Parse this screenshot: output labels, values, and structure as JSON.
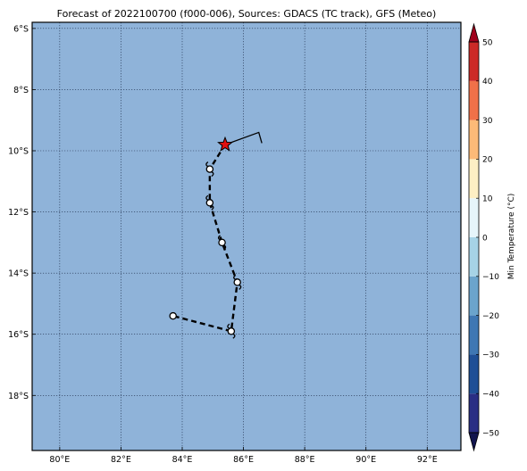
{
  "title": "Forecast of 2022100700 (f000-006), Sources: GDACS (TC track), GFS (Meteo)",
  "map": {
    "ocean_color": "#8fb3d9",
    "lon_range": [
      79.1,
      93.1
    ],
    "lat_range": [
      -19.8,
      -5.8
    ],
    "lon_ticks": [
      {
        "value": 80,
        "label": "80°E"
      },
      {
        "value": 82,
        "label": "82°E"
      },
      {
        "value": 84,
        "label": "84°E"
      },
      {
        "value": 86,
        "label": "86°E"
      },
      {
        "value": 88,
        "label": "88°E"
      },
      {
        "value": 90,
        "label": "90°E"
      },
      {
        "value": 92,
        "label": "92°E"
      }
    ],
    "lat_ticks": [
      {
        "value": -6,
        "label": "6°S"
      },
      {
        "value": -8,
        "label": "8°S"
      },
      {
        "value": -10,
        "label": "10°S"
      },
      {
        "value": -12,
        "label": "12°S"
      },
      {
        "value": -14,
        "label": "14°S"
      },
      {
        "value": -16,
        "label": "16°S"
      },
      {
        "value": -18,
        "label": "18°S"
      }
    ],
    "grid": "dotted"
  },
  "track": {
    "past_track": [
      [
        86.6,
        -9.75
      ],
      [
        86.5,
        -9.4
      ],
      [
        85.4,
        -9.8
      ]
    ],
    "current_position": [
      85.4,
      -9.8
    ],
    "forecast_points": [
      [
        84.9,
        -10.6
      ],
      [
        84.9,
        -11.7
      ],
      [
        85.3,
        -13.0
      ],
      [
        85.8,
        -14.3
      ],
      [
        85.6,
        -15.9
      ],
      [
        83.7,
        -15.4
      ]
    ],
    "marker_color": "#e01010"
  },
  "colorbar": {
    "label": "Min Temperature (°C)",
    "levels": [
      -50,
      -40,
      -30,
      -20,
      -10,
      0,
      10,
      20,
      30,
      40,
      50
    ],
    "tick_values": [
      -50,
      -40,
      -30,
      -20,
      -10,
      0,
      10,
      20,
      30,
      40,
      50
    ],
    "tick_labels": [
      "−50",
      "−40",
      "−30",
      "−20",
      "−10",
      "0",
      "10",
      "20",
      "30",
      "40",
      "50"
    ],
    "colors": [
      "#2a2e84",
      "#1f4f96",
      "#3f77b3",
      "#6ba4cc",
      "#a6d3e6",
      "#e6f5fa",
      "#fdefc4",
      "#fcba78",
      "#f07149",
      "#cc2a27",
      "#99031f"
    ],
    "under_color": "#12154e",
    "over_color": "#a0001c"
  }
}
